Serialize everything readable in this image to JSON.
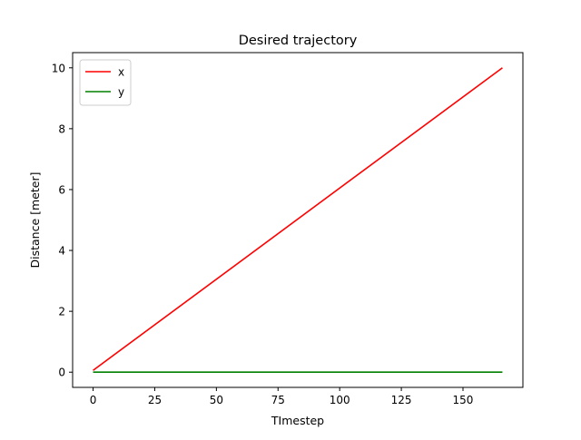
{
  "chart_data": {
    "type": "line",
    "title": "Desired trajectory",
    "xlabel": "TImestep",
    "ylabel": "Distance [meter]",
    "xlim": [
      -8.3,
      174.3
    ],
    "ylim": [
      -0.5,
      10.5
    ],
    "xticks": [
      0,
      25,
      50,
      75,
      100,
      125,
      150
    ],
    "yticks": [
      0,
      2,
      4,
      6,
      8,
      10
    ],
    "grid": false,
    "legend_position": "top-left",
    "series": [
      {
        "name": "x",
        "color": "#ff0000",
        "x": [
          0,
          166
        ],
        "y": [
          0.06,
          10.0
        ]
      },
      {
        "name": "y",
        "color": "#008000",
        "x": [
          0,
          166
        ],
        "y": [
          0.0,
          0.0
        ]
      }
    ]
  }
}
